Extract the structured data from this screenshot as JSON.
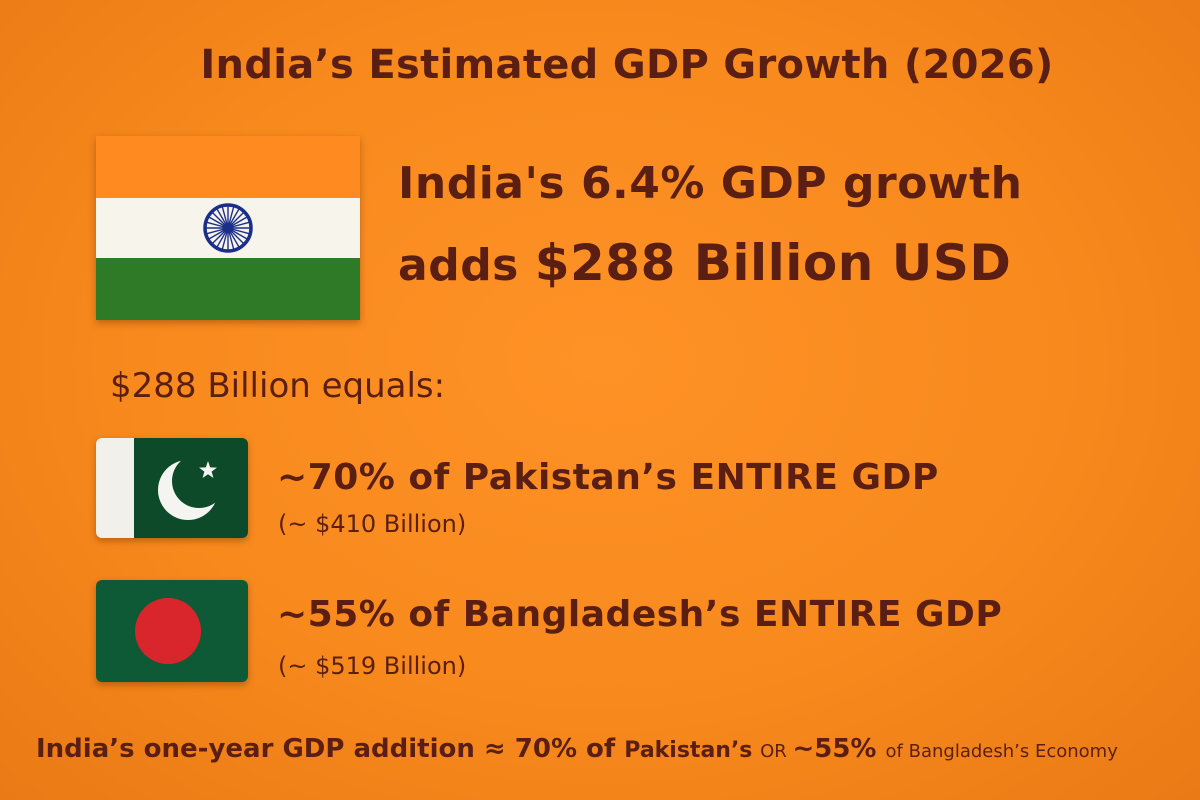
{
  "title": "India’s Estimated GDP Growth (2026)",
  "headline": {
    "line1": "India's 6.4% GDP growth",
    "line2_prefix": "adds ",
    "line2_highlight": "$288 Billion USD"
  },
  "equals_label": "$288 Billion equals:",
  "comparisons": [
    {
      "flag": "pakistan-flag",
      "main": "~70% of Pakistan’s ENTIRE GDP",
      "sub": "(~ $410 Billion)"
    },
    {
      "flag": "bangladesh-flag",
      "main": "~55% of Bangladesh’s ENTIRE GDP",
      "sub": "(~ $519 Billion)"
    }
  ],
  "footer": {
    "part1": "India’s one-year GDP addition ≈ 70% of ",
    "part2": "Pakistan’s ",
    "part3": "OR ",
    "part4": "~55% ",
    "part5": "of ",
    "part6": "Bangladesh’s Economy"
  },
  "colors": {
    "background": "#f7891d",
    "text": "#5a1f12",
    "india_saffron": "#ff8a1f",
    "india_white": "#f7f4ec",
    "india_green": "#2f7a26",
    "chakra_blue": "#1b2f8a",
    "pakistan_green": "#0d4a2a",
    "bangladesh_green": "#0f5a36",
    "bangladesh_red": "#d9262c"
  }
}
